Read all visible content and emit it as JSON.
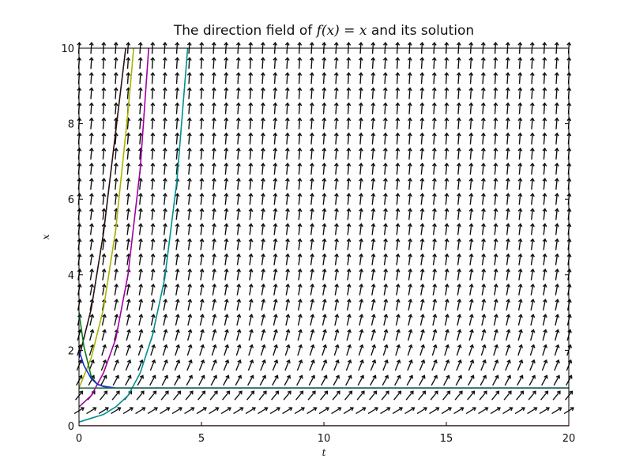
{
  "chart_data": {
    "type": "line",
    "title": {
      "prefix": "The direction field of ",
      "math": "f(x) = x",
      "suffix": " and its solution"
    },
    "xlabel": "t",
    "ylabel": "x",
    "xlim": [
      0,
      20
    ],
    "ylim": [
      0,
      10
    ],
    "xticks": [
      0,
      5,
      10,
      15,
      20
    ],
    "yticks": [
      0,
      2,
      4,
      6,
      8,
      10
    ],
    "grid": false,
    "legend": "none",
    "direction_field": {
      "arrow_color": "#111111",
      "t_step": 0.5,
      "x_step": 0.4
    },
    "series": [
      {
        "color": "#2a1010",
        "x": [
          0,
          0.5,
          1.0,
          1.5,
          2.0
        ],
        "y": [
          1.8,
          3.1,
          5.1,
          7.8,
          10.5
        ]
      },
      {
        "color": "#a8b400",
        "x": [
          0,
          0.5,
          1.0,
          1.5,
          2.0,
          2.3
        ],
        "y": [
          1.0,
          1.8,
          3.1,
          5.2,
          8.3,
          10.5
        ]
      },
      {
        "color": "#a000a0",
        "x": [
          0,
          0.5,
          1.0,
          1.5,
          2.0,
          2.5,
          2.9
        ],
        "y": [
          0.5,
          0.8,
          1.4,
          2.3,
          4.0,
          6.8,
          10.5
        ]
      },
      {
        "color": "#008f8f",
        "x": [
          0,
          0.5,
          1.0,
          1.5,
          2.0,
          2.5,
          3.0,
          3.5,
          4.0,
          4.5
        ],
        "y": [
          0.1,
          0.2,
          0.3,
          0.5,
          0.8,
          1.4,
          2.4,
          3.9,
          6.5,
          10.5
        ]
      },
      {
        "color": "#0a7a1a",
        "x": [
          0,
          0.2,
          0.5,
          0.75,
          1.0,
          1.5,
          2.0,
          5.0,
          10.0,
          20.0
        ],
        "y": [
          3.0,
          2.1,
          1.3,
          1.1,
          1.05,
          1.0,
          1.0,
          1.0,
          1.0,
          1.0
        ]
      },
      {
        "color": "#1a2ad0",
        "x": [
          0,
          0.2,
          0.5,
          0.75,
          1.0,
          1.5,
          2.0,
          5.0,
          10.0,
          20.0
        ],
        "y": [
          2.0,
          1.6,
          1.25,
          1.1,
          1.04,
          1.0,
          1.0,
          1.0,
          1.0,
          1.0
        ]
      },
      {
        "color": "#2a6a5a",
        "x": [
          0,
          20
        ],
        "y": [
          1.0,
          1.0
        ]
      },
      {
        "color": "#b01010",
        "x": [
          0,
          20
        ],
        "y": [
          0.0,
          0.0
        ]
      }
    ]
  }
}
